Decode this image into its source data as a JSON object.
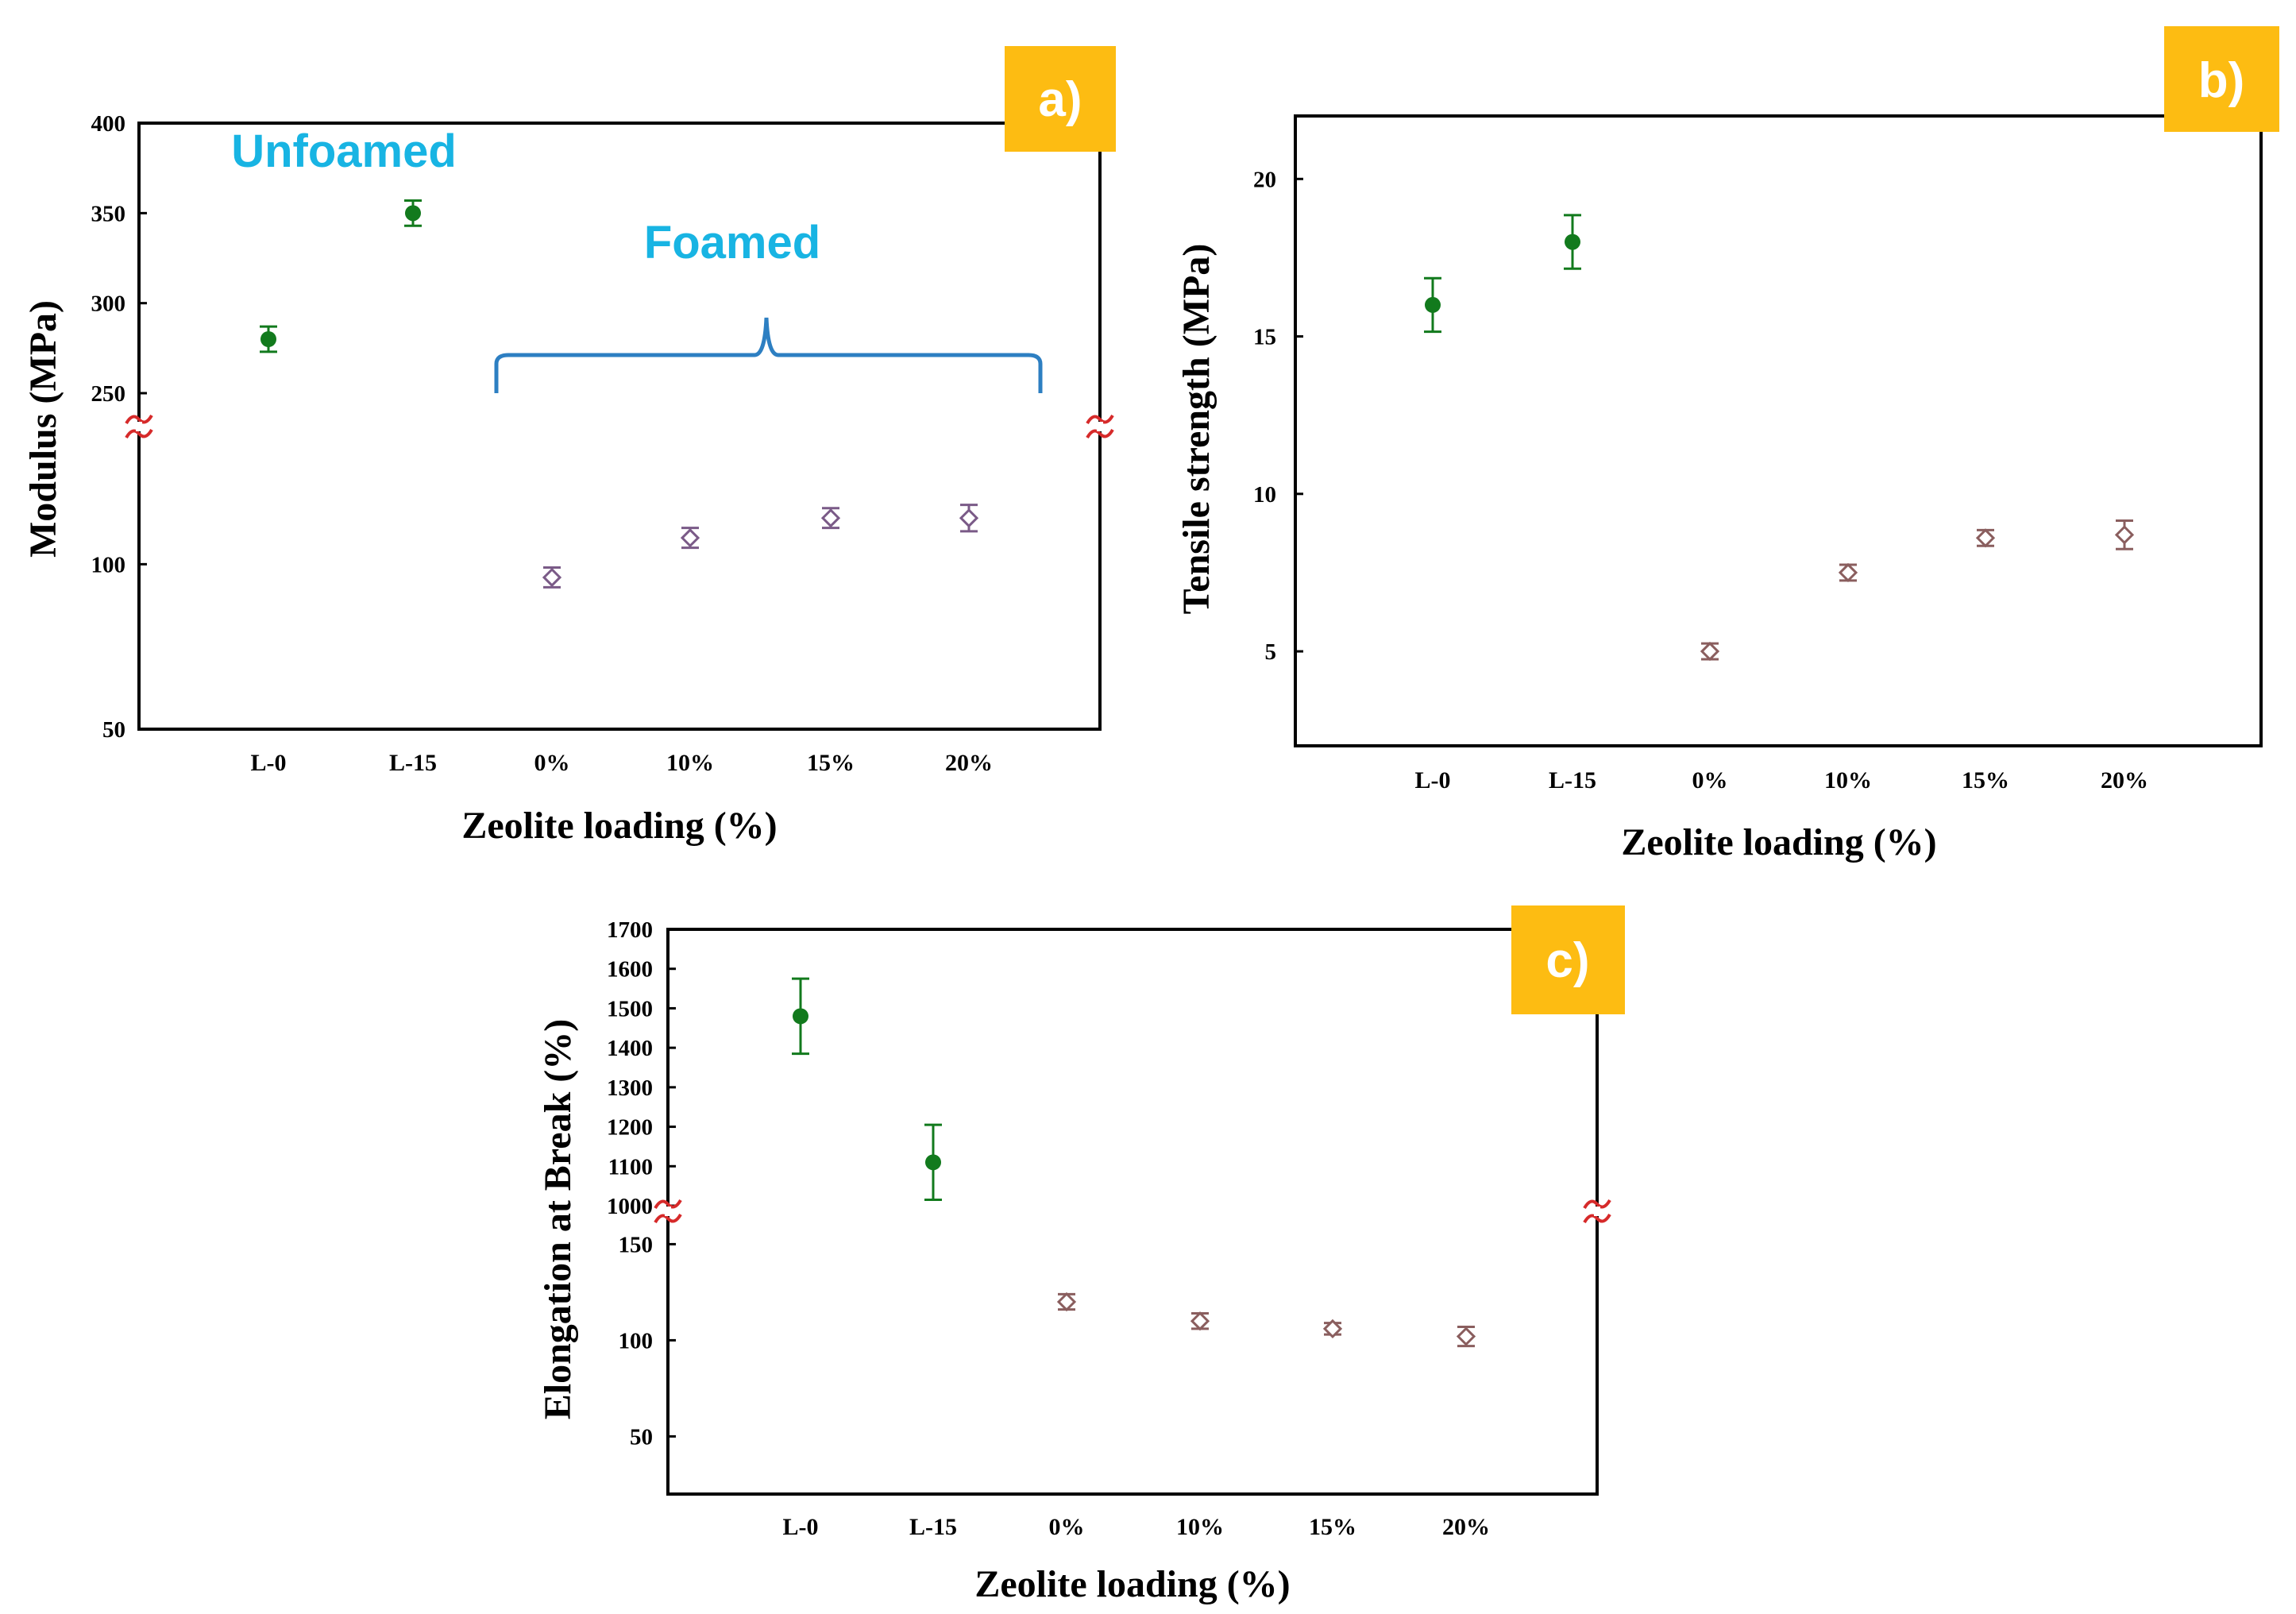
{
  "colors": {
    "unfoamed": "#127a1d",
    "foamed": "#7a5a87",
    "foamed_b": "#8a5e5e",
    "annotation": "#18b4e3",
    "brace": "#2d7fc2",
    "break_mark": "#d62a2a",
    "tag_bg": "#fdbc12"
  },
  "chart_data": [
    {
      "id": "a",
      "type": "scatter",
      "panel_label": "a)",
      "title": "",
      "xlabel": "Zeolite loading (%)",
      "ylabel": "Modulus (MPa)",
      "categories": [
        "L-0",
        "L-15",
        "0%",
        "10%",
        "15%",
        "20%"
      ],
      "broken_axis": true,
      "upper_segment": {
        "ylim": [
          250,
          400
        ],
        "ticks": [
          "250",
          "300",
          "350",
          "400"
        ]
      },
      "lower_segment": {
        "ylim": [
          50,
          135
        ],
        "ticks": [
          "50",
          "100"
        ]
      },
      "annotations": [
        "Unfoamed",
        "Foamed"
      ],
      "series": [
        {
          "name": "Unfoamed",
          "marker": "filled-circle",
          "segment": "upper",
          "points": [
            {
              "category": "L-0",
              "value": 280,
              "error": 7
            },
            {
              "category": "L-15",
              "value": 350,
              "error": 7
            }
          ]
        },
        {
          "name": "Foamed",
          "marker": "open-diamond",
          "segment": "lower",
          "points": [
            {
              "category": "0%",
              "value": 96,
              "error": 3
            },
            {
              "category": "10%",
              "value": 108,
              "error": 3
            },
            {
              "category": "15%",
              "value": 114,
              "error": 3
            },
            {
              "category": "20%",
              "value": 114,
              "error": 4
            }
          ]
        }
      ]
    },
    {
      "id": "b",
      "type": "scatter",
      "panel_label": "b)",
      "title": "",
      "xlabel": "Zeolite loading (%)",
      "ylabel": "Tensile strength (MPa)",
      "categories": [
        "L-0",
        "L-15",
        "0%",
        "10%",
        "15%",
        "20%"
      ],
      "broken_axis": false,
      "ylim": [
        2,
        22
      ],
      "yticks": [
        "5",
        "10",
        "15",
        "20"
      ],
      "series": [
        {
          "name": "Unfoamed",
          "marker": "filled-circle",
          "points": [
            {
              "category": "L-0",
              "value": 16.0,
              "error": 0.85
            },
            {
              "category": "L-15",
              "value": 18.0,
              "error": 0.85
            }
          ]
        },
        {
          "name": "Foamed",
          "marker": "open-diamond",
          "points": [
            {
              "category": "0%",
              "value": 5.0,
              "error": 0.25
            },
            {
              "category": "10%",
              "value": 7.5,
              "error": 0.25
            },
            {
              "category": "15%",
              "value": 8.6,
              "error": 0.25
            },
            {
              "category": "20%",
              "value": 8.7,
              "error": 0.45
            }
          ]
        }
      ]
    },
    {
      "id": "c",
      "type": "scatter",
      "panel_label": "c)",
      "title": "",
      "xlabel": "Zeolite loading (%)",
      "ylabel": "Elongation at Break (%)",
      "categories": [
        "L-0",
        "L-15",
        "0%",
        "10%",
        "15%",
        "20%"
      ],
      "broken_axis": true,
      "upper_segment": {
        "ylim": [
          1000,
          1700
        ],
        "ticks": [
          "1000",
          "1100",
          "1200",
          "1300",
          "1400",
          "1500",
          "1600",
          "1700"
        ]
      },
      "lower_segment": {
        "ylim": [
          20,
          170
        ],
        "ticks": [
          "50",
          "100",
          "150"
        ]
      },
      "series": [
        {
          "name": "Unfoamed",
          "marker": "filled-circle",
          "segment": "upper",
          "points": [
            {
              "category": "L-0",
              "value": 1480,
              "error": 95
            },
            {
              "category": "L-15",
              "value": 1110,
              "error": 95
            }
          ]
        },
        {
          "name": "Foamed",
          "marker": "open-diamond",
          "segment": "lower",
          "points": [
            {
              "category": "0%",
              "value": 120,
              "error": 4
            },
            {
              "category": "10%",
              "value": 110,
              "error": 4
            },
            {
              "category": "15%",
              "value": 106,
              "error": 3
            },
            {
              "category": "20%",
              "value": 102,
              "error": 5
            }
          ]
        }
      ]
    }
  ]
}
